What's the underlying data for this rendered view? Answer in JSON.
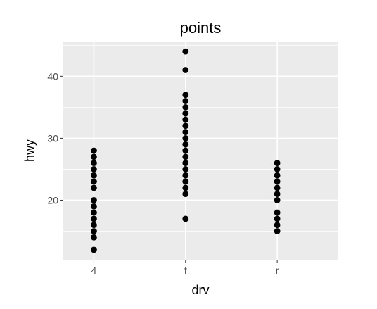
{
  "chart_data": {
    "type": "scatter",
    "title": "points",
    "xlabel": "drv",
    "ylabel": "hwy",
    "categories": [
      "4",
      "f",
      "r"
    ],
    "y_ticks": [
      20,
      30,
      40
    ],
    "ylim": [
      10.4,
      45.6
    ],
    "grid": true,
    "points": [
      {
        "x": "4",
        "y": [
          12,
          14,
          15,
          16,
          17,
          18,
          19,
          20,
          22,
          23,
          24,
          25,
          26,
          27,
          28
        ]
      },
      {
        "x": "f",
        "y": [
          17,
          21,
          22,
          23,
          24,
          25,
          26,
          27,
          28,
          29,
          30,
          31,
          32,
          33,
          34,
          35,
          36,
          37,
          41,
          44
        ]
      },
      {
        "x": "r",
        "y": [
          15,
          16,
          17,
          18,
          20,
          21,
          22,
          23,
          24,
          25,
          26
        ]
      }
    ],
    "colors": {
      "panel": "#ebebeb",
      "grid_major": "#ffffff",
      "point": "#000000"
    }
  }
}
